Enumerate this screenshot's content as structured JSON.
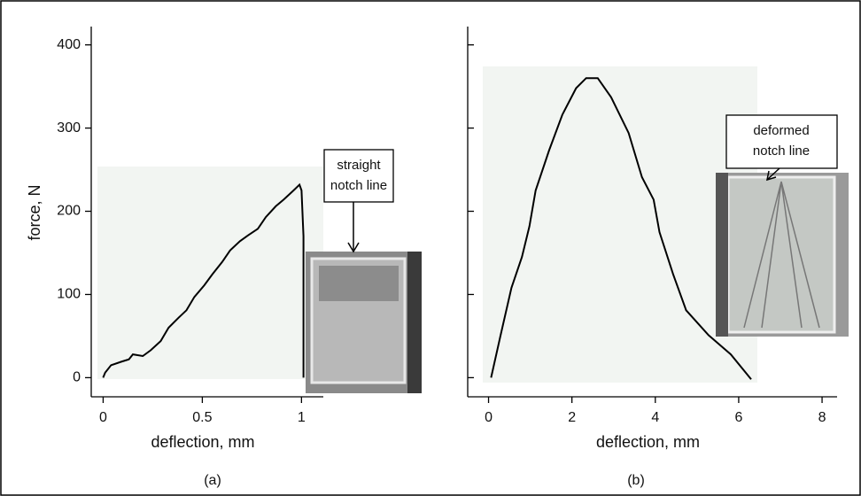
{
  "chart_data": [
    {
      "type": "line",
      "caption": "(a)",
      "xlabel": "deflection, mm",
      "ylabel": "force, N",
      "x": [
        0,
        0.01,
        0.04,
        0.09,
        0.13,
        0.15,
        0.2,
        0.24,
        0.29,
        0.33,
        0.38,
        0.42,
        0.46,
        0.51,
        0.55,
        0.6,
        0.64,
        0.69,
        0.73,
        0.78,
        0.82,
        0.87,
        0.91,
        0.96,
        0.99,
        1.0,
        1.01,
        1.01
      ],
      "values": [
        0,
        6,
        15,
        19,
        22,
        28,
        26,
        33,
        44,
        60,
        72,
        81,
        97,
        111,
        124,
        139,
        153,
        164,
        171,
        179,
        193,
        206,
        214,
        225,
        232,
        225,
        170,
        0
      ],
      "color": "#000000",
      "xlim": [
        -0.06,
        1.11
      ],
      "xticks": [
        0,
        0.5,
        1
      ],
      "ylim": [
        -23,
        422
      ],
      "yticks": [
        0,
        100,
        200,
        300,
        400
      ],
      "show_ytick_labels": true,
      "annotation": [
        "straight",
        "notch line"
      ]
    },
    {
      "type": "line",
      "caption": "(b)",
      "xlabel": "deflection, mm",
      "x": [
        0.06,
        0.28,
        0.55,
        0.8,
        0.98,
        1.13,
        1.45,
        1.77,
        2.1,
        2.34,
        2.62,
        2.94,
        3.36,
        3.68,
        3.96,
        4.1,
        4.43,
        4.74,
        5.28,
        5.81,
        6.3
      ],
      "values": [
        0,
        49,
        108,
        145,
        182,
        225,
        273,
        316,
        348,
        360,
        360,
        337,
        294,
        241,
        214,
        175,
        124,
        81,
        51,
        28,
        -2
      ],
      "color": "#000000",
      "xlim": [
        -0.5,
        8.36
      ],
      "xticks": [
        0,
        2,
        4,
        6,
        8
      ],
      "ylim": [
        -23,
        422
      ],
      "yticks": [
        0,
        100,
        200,
        300,
        400
      ],
      "show_ytick_labels": false,
      "annotation": [
        "deformed",
        "notch line"
      ]
    }
  ]
}
